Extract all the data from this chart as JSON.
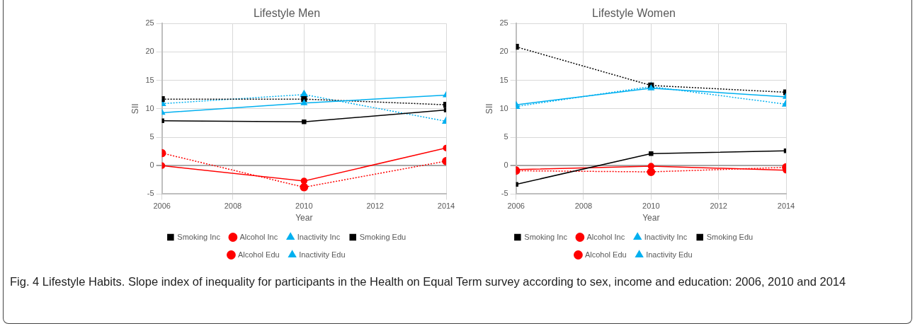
{
  "chart_data": [
    {
      "type": "line",
      "title": "Lifestyle Men",
      "xlabel": "Year",
      "ylabel": "SII",
      "x": [
        2006,
        2010,
        2014
      ],
      "xlim": [
        2006,
        2014
      ],
      "xticks": [
        2006,
        2008,
        2010,
        2012,
        2014
      ],
      "ylim": [
        -5,
        25
      ],
      "yticks": [
        -5,
        0,
        5,
        10,
        15,
        20,
        25
      ],
      "grid": true,
      "legend": "bottom",
      "series": [
        {
          "name": "Smoking Inc",
          "color": "#000000",
          "marker": "square",
          "line_style": "solid",
          "values": [
            7.9,
            7.7,
            9.8
          ]
        },
        {
          "name": "Alcohol Inc",
          "color": "#ff0000",
          "marker": "circle",
          "line_style": "solid",
          "values": [
            0,
            -2.7,
            3.1
          ]
        },
        {
          "name": "Inactivity Inc",
          "color": "#00b0f0",
          "marker": "triangle",
          "line_style": "solid",
          "values": [
            9.3,
            11.0,
            12.4
          ]
        },
        {
          "name": "Smoking Edu",
          "color": "#000000",
          "marker": "square",
          "line_style": "dotted",
          "values": [
            11.7,
            11.7,
            10.7
          ]
        },
        {
          "name": "Alcohol Edu",
          "color": "#ff0000",
          "marker": "circle",
          "line_style": "dotted",
          "values": [
            2.2,
            -3.8,
            0.8
          ]
        },
        {
          "name": "Inactivity Edu",
          "color": "#00b0f0",
          "marker": "triangle",
          "line_style": "dotted",
          "values": [
            10.9,
            12.5,
            7.8
          ]
        }
      ],
      "annotations": [
        "Fig. 4 Lifestyle Habits. Slope index of inequality for participants in the Health on Equal Term survey according to sex, income and education: 2006, 2010 and 2014"
      ]
    },
    {
      "type": "line",
      "title": "Lifestyle Women",
      "xlabel": "Year",
      "ylabel": "SII",
      "x": [
        2006,
        2010,
        2014
      ],
      "xlim": [
        2006,
        2014
      ],
      "xticks": [
        2006,
        2008,
        2010,
        2012,
        2014
      ],
      "ylim": [
        -5,
        25
      ],
      "yticks": [
        -5,
        0,
        5,
        10,
        15,
        20,
        25
      ],
      "grid": true,
      "legend": "bottom",
      "series": [
        {
          "name": "Smoking Inc",
          "color": "#000000",
          "marker": "square",
          "line_style": "solid",
          "values": [
            -3.3,
            2.1,
            2.6
          ]
        },
        {
          "name": "Alcohol Inc",
          "color": "#ff0000",
          "marker": "circle",
          "line_style": "solid",
          "values": [
            -0.7,
            -0.1,
            -0.8
          ]
        },
        {
          "name": "Inactivity Inc",
          "color": "#00b0f0",
          "marker": "triangle",
          "line_style": "solid",
          "values": [
            10.7,
            13.6,
            12.1
          ]
        },
        {
          "name": "Smoking Edu",
          "color": "#000000",
          "marker": "square",
          "line_style": "dotted",
          "values": [
            20.9,
            14.1,
            12.9
          ]
        },
        {
          "name": "Alcohol Edu",
          "color": "#ff0000",
          "marker": "circle",
          "line_style": "dotted",
          "values": [
            -0.9,
            -1.1,
            -0.3
          ]
        },
        {
          "name": "Inactivity Edu",
          "color": "#00b0f0",
          "marker": "triangle",
          "line_style": "dotted",
          "values": [
            10.4,
            13.9,
            10.8
          ]
        }
      ]
    }
  ]
}
